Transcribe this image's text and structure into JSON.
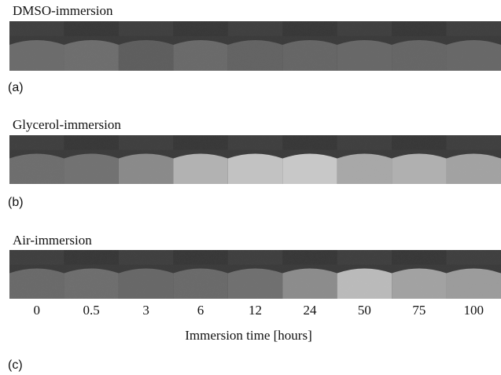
{
  "panels": [
    {
      "title": "DMSO-immersion",
      "label": "(a)"
    },
    {
      "title": "Glycerol-immersion",
      "label": "(b)"
    },
    {
      "title": "Air-immersion",
      "label": "(c)"
    }
  ],
  "x_axis": {
    "ticks": [
      "0",
      "0.5",
      "3",
      "6",
      "12",
      "24",
      "50",
      "75",
      "100"
    ],
    "label": "Immersion time [hours]"
  }
}
